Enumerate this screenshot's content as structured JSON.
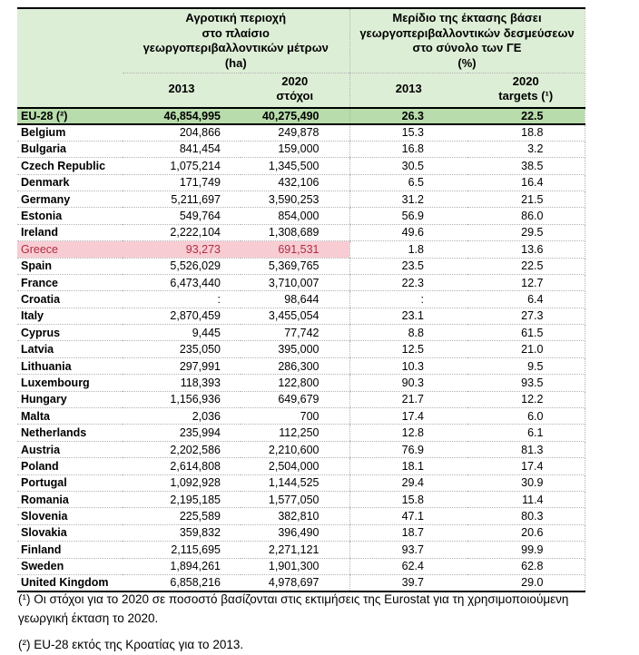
{
  "table": {
    "header": {
      "group1_title": "Αγροτική περιοχή\nστο πλαίσιο\nγεωργοπεριβαλλοντικών μέτρων\n(ha)",
      "group2_title": "Μερίδιο της έκτασης βάσει\nγεωργοπεριβαλλοντικών δεσμεύσεων\nστο σύνολο των ΓΕ\n(%)",
      "col_ha_2013": "2013",
      "col_ha_2020": "2020\nστόχοι",
      "col_pct_2013": "2013",
      "col_pct_2020": "2020\ntargets (¹)"
    },
    "rows": [
      {
        "country": "EU-28 (²)",
        "ha_2013": "46,854,995",
        "ha_2020": "40,275,490",
        "pct_2013": "26.3",
        "pct_2020": "22.5",
        "style": "eu"
      },
      {
        "country": "Belgium",
        "ha_2013": "204,866",
        "ha_2020": "249,878",
        "pct_2013": "15.3",
        "pct_2020": "18.8",
        "style": "normal"
      },
      {
        "country": "Bulgaria",
        "ha_2013": "841,454",
        "ha_2020": "159,000",
        "pct_2013": "16.8",
        "pct_2020": "3.2",
        "style": "normal"
      },
      {
        "country": "Czech Republic",
        "ha_2013": "1,075,214",
        "ha_2020": "1,345,500",
        "pct_2013": "30.5",
        "pct_2020": "38.5",
        "style": "normal"
      },
      {
        "country": "Denmark",
        "ha_2013": "171,749",
        "ha_2020": "432,106",
        "pct_2013": "6.5",
        "pct_2020": "16.4",
        "style": "normal"
      },
      {
        "country": "Germany",
        "ha_2013": "5,211,697",
        "ha_2020": "3,590,253",
        "pct_2013": "31.2",
        "pct_2020": "21.5",
        "style": "normal"
      },
      {
        "country": "Estonia",
        "ha_2013": "549,764",
        "ha_2020": "854,000",
        "pct_2013": "56.9",
        "pct_2020": "86.0",
        "style": "normal"
      },
      {
        "country": "Ireland",
        "ha_2013": "2,222,104",
        "ha_2020": "1,308,689",
        "pct_2013": "49.6",
        "pct_2020": "29.5",
        "style": "normal"
      },
      {
        "country": "Greece",
        "ha_2013": "93,273",
        "ha_2020": "691,531",
        "pct_2013": "1.8",
        "pct_2020": "13.6",
        "style": "highlight"
      },
      {
        "country": "Spain",
        "ha_2013": "5,526,029",
        "ha_2020": "5,369,765",
        "pct_2013": "23.5",
        "pct_2020": "22.5",
        "style": "normal"
      },
      {
        "country": "France",
        "ha_2013": "6,473,440",
        "ha_2020": "3,710,007",
        "pct_2013": "22.3",
        "pct_2020": "12.7",
        "style": "normal"
      },
      {
        "country": "Croatia",
        "ha_2013": ":",
        "ha_2020": "98,644",
        "pct_2013": ":",
        "pct_2020": "6.4",
        "style": "normal"
      },
      {
        "country": "Italy",
        "ha_2013": "2,870,459",
        "ha_2020": "3,455,054",
        "pct_2013": "23.1",
        "pct_2020": "27.3",
        "style": "normal"
      },
      {
        "country": "Cyprus",
        "ha_2013": "9,445",
        "ha_2020": "77,742",
        "pct_2013": "8.8",
        "pct_2020": "61.5",
        "style": "normal"
      },
      {
        "country": "Latvia",
        "ha_2013": "235,050",
        "ha_2020": "395,000",
        "pct_2013": "12.5",
        "pct_2020": "21.0",
        "style": "normal"
      },
      {
        "country": "Lithuania",
        "ha_2013": "297,991",
        "ha_2020": "286,300",
        "pct_2013": "10.3",
        "pct_2020": "9.5",
        "style": "normal"
      },
      {
        "country": "Luxembourg",
        "ha_2013": "118,393",
        "ha_2020": "122,800",
        "pct_2013": "90.3",
        "pct_2020": "93.5",
        "style": "normal"
      },
      {
        "country": "Hungary",
        "ha_2013": "1,156,936",
        "ha_2020": "649,679",
        "pct_2013": "21.7",
        "pct_2020": "12.2",
        "style": "normal"
      },
      {
        "country": "Malta",
        "ha_2013": "2,036",
        "ha_2020": "700",
        "pct_2013": "17.4",
        "pct_2020": "6.0",
        "style": "normal"
      },
      {
        "country": "Netherlands",
        "ha_2013": "235,994",
        "ha_2020": "112,250",
        "pct_2013": "12.8",
        "pct_2020": "6.1",
        "style": "normal"
      },
      {
        "country": "Austria",
        "ha_2013": "2,202,586",
        "ha_2020": "2,210,600",
        "pct_2013": "76.9",
        "pct_2020": "81.3",
        "style": "normal"
      },
      {
        "country": "Poland",
        "ha_2013": "2,614,808",
        "ha_2020": "2,504,000",
        "pct_2013": "18.1",
        "pct_2020": "17.4",
        "style": "normal"
      },
      {
        "country": "Portugal",
        "ha_2013": "1,092,928",
        "ha_2020": "1,144,525",
        "pct_2013": "29.4",
        "pct_2020": "30.9",
        "style": "normal"
      },
      {
        "country": "Romania",
        "ha_2013": "2,195,185",
        "ha_2020": "1,577,050",
        "pct_2013": "15.8",
        "pct_2020": "11.4",
        "style": "normal"
      },
      {
        "country": "Slovenia",
        "ha_2013": "225,589",
        "ha_2020": "382,810",
        "pct_2013": "47.1",
        "pct_2020": "80.3",
        "style": "normal"
      },
      {
        "country": "Slovakia",
        "ha_2013": "359,832",
        "ha_2020": "396,490",
        "pct_2013": "18.7",
        "pct_2020": "20.6",
        "style": "normal"
      },
      {
        "country": "Finland",
        "ha_2013": "2,115,695",
        "ha_2020": "2,271,121",
        "pct_2013": "93.7",
        "pct_2020": "99.9",
        "style": "normal"
      },
      {
        "country": "Sweden",
        "ha_2013": "1,894,261",
        "ha_2020": "1,901,300",
        "pct_2013": "62.4",
        "pct_2020": "62.8",
        "style": "normal"
      },
      {
        "country": "United Kingdom",
        "ha_2013": "6,858,216",
        "ha_2020": "4,978,697",
        "pct_2013": "39.7",
        "pct_2020": "29.0",
        "style": "normal"
      }
    ],
    "highlighted_country": "Greece",
    "missing_value_symbol": ":"
  },
  "footnotes": [
    "(¹) Οι στόχοι για το 2020 σε ποσοστό βασίζονται στις εκτιμήσεις της Eurostat για τη χρησιμοποιούμενη γεωργική έκταση το 2020.",
    "(²) EU-28 εκτός της Κροατίας για το 2013."
  ],
  "colors": {
    "header_bg": "#ddeed6",
    "eu_row_bg": "#b8dcab",
    "highlight_bg": "#f8ccd3",
    "highlight_text": "#ad2e42",
    "dotted_line": "#b3b3b3"
  }
}
